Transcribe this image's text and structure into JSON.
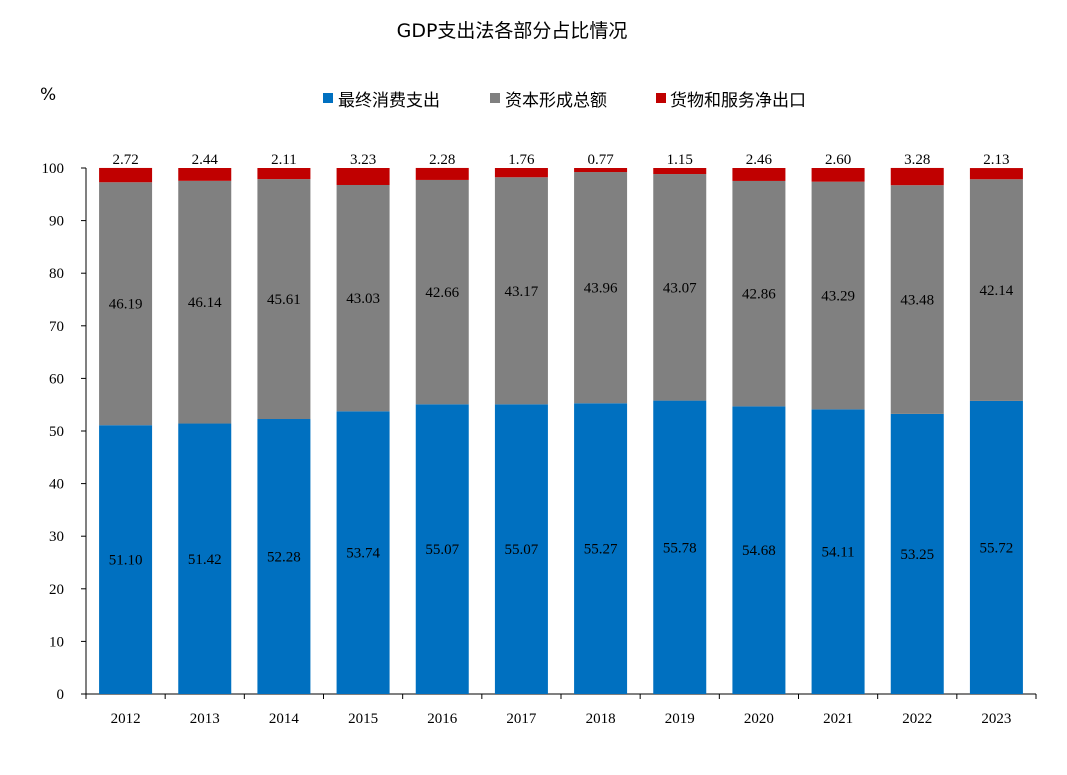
{
  "chart_data": {
    "type": "bar",
    "stacked": true,
    "title": "GDP支出法各部分占比情况",
    "ylabel": "%",
    "xlabel": "",
    "ylim": [
      0,
      100
    ],
    "yticks": [
      0,
      10,
      20,
      30,
      40,
      50,
      60,
      70,
      80,
      90,
      100
    ],
    "grid": false,
    "legend": "top",
    "categories": [
      "2012",
      "2013",
      "2014",
      "2015",
      "2016",
      "2017",
      "2018",
      "2019",
      "2020",
      "2021",
      "2022",
      "2023"
    ],
    "series": [
      {
        "name": "最终消费支出",
        "color": "#0070C0",
        "values": [
          51.1,
          51.42,
          52.28,
          53.74,
          55.07,
          55.07,
          55.27,
          55.78,
          54.68,
          54.11,
          53.25,
          55.72
        ]
      },
      {
        "name": "资本形成总额",
        "color": "#808080",
        "values": [
          46.19,
          46.14,
          45.61,
          43.03,
          42.66,
          43.17,
          43.96,
          43.07,
          42.86,
          43.29,
          43.48,
          42.14
        ]
      },
      {
        "name": "货物和服务净出口",
        "color": "#C00000",
        "values": [
          2.72,
          2.44,
          2.11,
          3.23,
          2.28,
          1.76,
          0.77,
          1.15,
          2.46,
          2.6,
          3.28,
          2.13
        ]
      }
    ]
  }
}
